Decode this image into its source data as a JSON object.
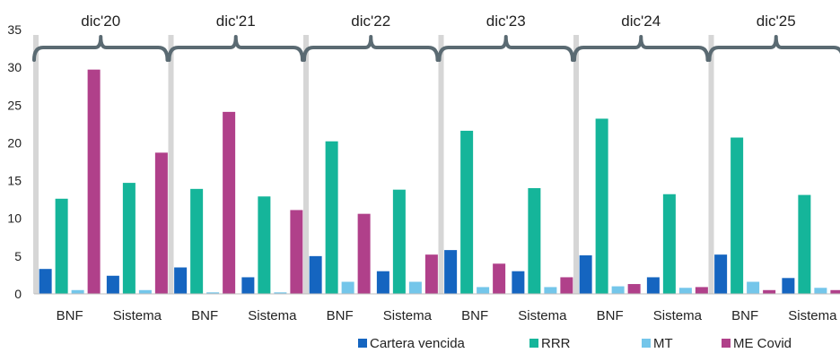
{
  "chart_data": {
    "type": "bar",
    "periods": [
      "dic'20",
      "dic'21",
      "dic'22",
      "dic'23",
      "dic'24",
      "dic'25"
    ],
    "categories": [
      "BNF",
      "Sistema",
      "BNF",
      "Sistema",
      "BNF",
      "Sistema",
      "BNF",
      "Sistema",
      "BNF",
      "Sistema",
      "BNF",
      "Sistema"
    ],
    "ylim": [
      0,
      35
    ],
    "yticks": [
      "0",
      "5",
      "10",
      "15",
      "20",
      "25",
      "30",
      "35"
    ],
    "series": [
      {
        "name": "Cartera vencida",
        "color": "#1565c0",
        "values": [
          3.3,
          2.4,
          3.5,
          2.2,
          5.0,
          3.0,
          5.8,
          3.0,
          5.1,
          2.2,
          5.2,
          2.1
        ]
      },
      {
        "name": "RRR",
        "color": "#15b59a",
        "values": [
          12.6,
          14.7,
          13.9,
          12.9,
          20.2,
          13.8,
          21.6,
          14.0,
          23.2,
          13.2,
          20.7,
          13.1
        ]
      },
      {
        "name": "MT",
        "color": "#74c6ea",
        "values": [
          0.5,
          0.5,
          0.2,
          0.2,
          1.6,
          1.6,
          0.9,
          0.9,
          1.0,
          0.8,
          1.6,
          0.8
        ]
      },
      {
        "name": "ME Covid",
        "color": "#b0408a",
        "values": [
          29.7,
          18.7,
          24.1,
          11.1,
          10.6,
          5.2,
          4.0,
          2.2,
          1.3,
          0.9,
          0.5,
          0.5
        ]
      }
    ],
    "legend_position": "bottom",
    "grid": false,
    "separator_color": "#d6d6d6",
    "bracket_color": "#5a6a72"
  }
}
